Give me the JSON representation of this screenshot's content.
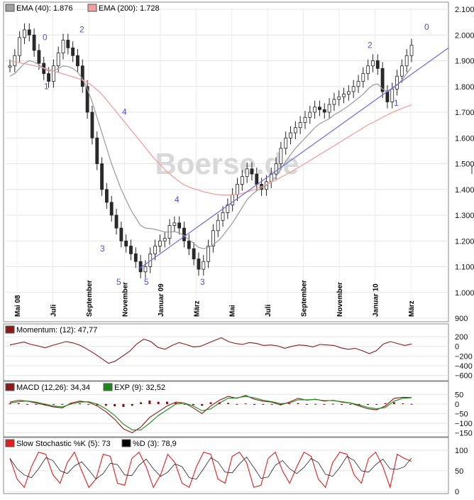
{
  "watermark": "Boerse.de",
  "chart_data": [
    {
      "type": "candlestick",
      "panel": "price",
      "legend": [
        {
          "label": "EMA (40): 1.876",
          "color": "#a0a0a0"
        },
        {
          "label": "EMA (200): 1.728",
          "color": "#f0a0a0"
        }
      ],
      "y_ticks": [
        "2.100",
        "2.000",
        "1.900",
        "1.800",
        "1.700",
        "1.600",
        "1.500",
        "1.400",
        "1.300",
        "1.200",
        "1.100",
        "1.000",
        "900"
      ],
      "ylim": [
        900,
        2100
      ],
      "x_months": [
        {
          "label": "Mai 08",
          "bold": true
        },
        {
          "label": "Juli",
          "bold": false
        },
        {
          "label": "September",
          "bold": false
        },
        {
          "label": "November",
          "bold": false
        },
        {
          "label": "Januar 09",
          "bold": true
        },
        {
          "label": "März",
          "bold": false
        },
        {
          "label": "Mai",
          "bold": false
        },
        {
          "label": "Juli",
          "bold": false
        },
        {
          "label": "September",
          "bold": false
        },
        {
          "label": "November",
          "bold": false
        },
        {
          "label": "Januar 10",
          "bold": true
        },
        {
          "label": "März",
          "bold": false
        }
      ],
      "close_series": [
        1880,
        1920,
        1990,
        2020,
        2000,
        1940,
        1890,
        1850,
        1820,
        1880,
        1930,
        1980,
        1950,
        1920,
        1880,
        1800,
        1700,
        1600,
        1500,
        1400,
        1350,
        1300,
        1250,
        1200,
        1180,
        1150,
        1120,
        1080,
        1100,
        1150,
        1180,
        1200,
        1210,
        1260,
        1270,
        1250,
        1200,
        1170,
        1130,
        1090,
        1120,
        1180,
        1240,
        1280,
        1310,
        1340,
        1380,
        1420,
        1450,
        1480,
        1460,
        1420,
        1400,
        1430,
        1460,
        1500,
        1560,
        1600,
        1620,
        1640,
        1660,
        1680,
        1700,
        1720,
        1710,
        1700,
        1730,
        1750,
        1760,
        1770,
        1780,
        1800,
        1820,
        1850,
        1880,
        1900,
        1870,
        1780,
        1740,
        1790,
        1840,
        1880,
        1920,
        1960
      ],
      "ema40": [
        1840,
        1850,
        1870,
        1890,
        1900,
        1895,
        1885,
        1870,
        1860,
        1862,
        1870,
        1880,
        1878,
        1870,
        1855,
        1830,
        1790,
        1740,
        1680,
        1620,
        1560,
        1500,
        1450,
        1400,
        1360,
        1320,
        1290,
        1260,
        1250,
        1248,
        1245,
        1240,
        1235,
        1235,
        1236,
        1232,
        1220,
        1205,
        1190,
        1175,
        1170,
        1175,
        1185,
        1200,
        1220,
        1245,
        1270,
        1300,
        1330,
        1360,
        1380,
        1395,
        1405,
        1415,
        1430,
        1450,
        1480,
        1510,
        1535,
        1560,
        1580,
        1600,
        1620,
        1640,
        1655,
        1665,
        1675,
        1690,
        1700,
        1712,
        1725,
        1740,
        1755,
        1770,
        1790,
        1805,
        1810,
        1790,
        1780,
        1790,
        1805,
        1825,
        1850,
        1876
      ],
      "ema200": [
        1900,
        1895,
        1890,
        1885,
        1880,
        1875,
        1868,
        1860,
        1852,
        1845,
        1838,
        1830,
        1820,
        1805,
        1785,
        1760,
        1730,
        1700,
        1670,
        1640,
        1610,
        1580,
        1550,
        1520,
        1495,
        1470,
        1450,
        1430,
        1415,
        1405,
        1398,
        1390,
        1385,
        1380,
        1378,
        1378,
        1380,
        1385,
        1392,
        1400,
        1410,
        1420,
        1432,
        1445,
        1458,
        1472,
        1486,
        1500,
        1515,
        1530,
        1545,
        1560,
        1575,
        1590,
        1605,
        1620,
        1635,
        1650,
        1662,
        1675,
        1688,
        1700,
        1710,
        1720,
        1728
      ],
      "trendline": {
        "from": [
          1090,
          "Januar 09"
        ],
        "to": [
          1950,
          "März"
        ]
      },
      "wave_labels": [
        "0",
        "1",
        "2",
        "3",
        "4",
        "5",
        "5",
        "4",
        "3",
        "2",
        "1",
        "0"
      ]
    },
    {
      "type": "line",
      "panel": "momentum",
      "legend": [
        {
          "label": "Momentum: (12): 47,77",
          "color": "#8b1a1a"
        }
      ],
      "y_ticks": [
        "200",
        "0",
        "−200",
        "−400",
        "−600"
      ],
      "ylim": [
        -650,
        260
      ],
      "values": [
        30,
        60,
        90,
        40,
        10,
        -30,
        20,
        60,
        100,
        70,
        20,
        -60,
        -150,
        -250,
        -350,
        -300,
        -200,
        -100,
        50,
        150,
        100,
        -20,
        -60,
        20,
        80,
        40,
        -10,
        0,
        60,
        120,
        180,
        100,
        60,
        40,
        80,
        60,
        20,
        30,
        10,
        -40,
        0,
        30,
        20,
        -10,
        40,
        30,
        20,
        -30,
        -60,
        -40,
        -90,
        -150,
        -90,
        50,
        100,
        60,
        20,
        48
      ]
    },
    {
      "type": "line",
      "panel": "macd",
      "legend": [
        {
          "label": "MACD (12,26): 34,34",
          "color": "#8b1a1a"
        },
        {
          "label": "EXP (9): 32,52",
          "color": "#1a8b1a"
        }
      ],
      "y_ticks": [
        "50",
        "0",
        "−50",
        "−100",
        "−150"
      ],
      "ylim": [
        -160,
        70
      ],
      "macd": [
        10,
        20,
        15,
        5,
        -5,
        -15,
        -20,
        5,
        15,
        10,
        -10,
        -40,
        -80,
        -130,
        -150,
        -120,
        -70,
        -40,
        -10,
        10,
        5,
        -20,
        -50,
        -10,
        20,
        40,
        30,
        45,
        25,
        15,
        10,
        -5,
        10,
        30,
        20,
        25,
        15,
        20,
        10,
        5,
        -10,
        -25,
        -30,
        -10,
        30,
        35,
        34
      ],
      "exp": [
        5,
        12,
        16,
        10,
        0,
        -10,
        -15,
        0,
        10,
        12,
        0,
        -25,
        -60,
        -105,
        -135,
        -135,
        -100,
        -60,
        -30,
        0,
        5,
        -10,
        -35,
        -25,
        5,
        30,
        32,
        40,
        32,
        20,
        12,
        2,
        5,
        22,
        22,
        24,
        18,
        18,
        12,
        6,
        -5,
        -18,
        -25,
        -18,
        15,
        30,
        33
      ]
    },
    {
      "type": "line",
      "panel": "stochastic",
      "legend": [
        {
          "label": "Slow Stochastic %K (5): 73",
          "color": "#e02020"
        },
        {
          "label": "%D (3): 78,9",
          "color": "#000000"
        }
      ],
      "y_ticks": [
        "100",
        "50",
        "0"
      ],
      "ylim": [
        0,
        110
      ],
      "k": [
        80,
        30,
        10,
        60,
        95,
        90,
        40,
        20,
        70,
        95,
        50,
        10,
        30,
        90,
        85,
        20,
        15,
        80,
        95,
        60,
        10,
        40,
        90,
        70,
        20,
        10,
        60,
        95,
        90,
        30,
        20,
        85,
        95,
        70,
        10,
        15,
        80,
        95,
        50,
        20,
        60,
        95,
        85,
        30,
        10,
        70,
        95,
        90,
        40,
        20,
        80,
        95,
        60,
        10,
        90,
        80,
        73
      ]
    }
  ]
}
